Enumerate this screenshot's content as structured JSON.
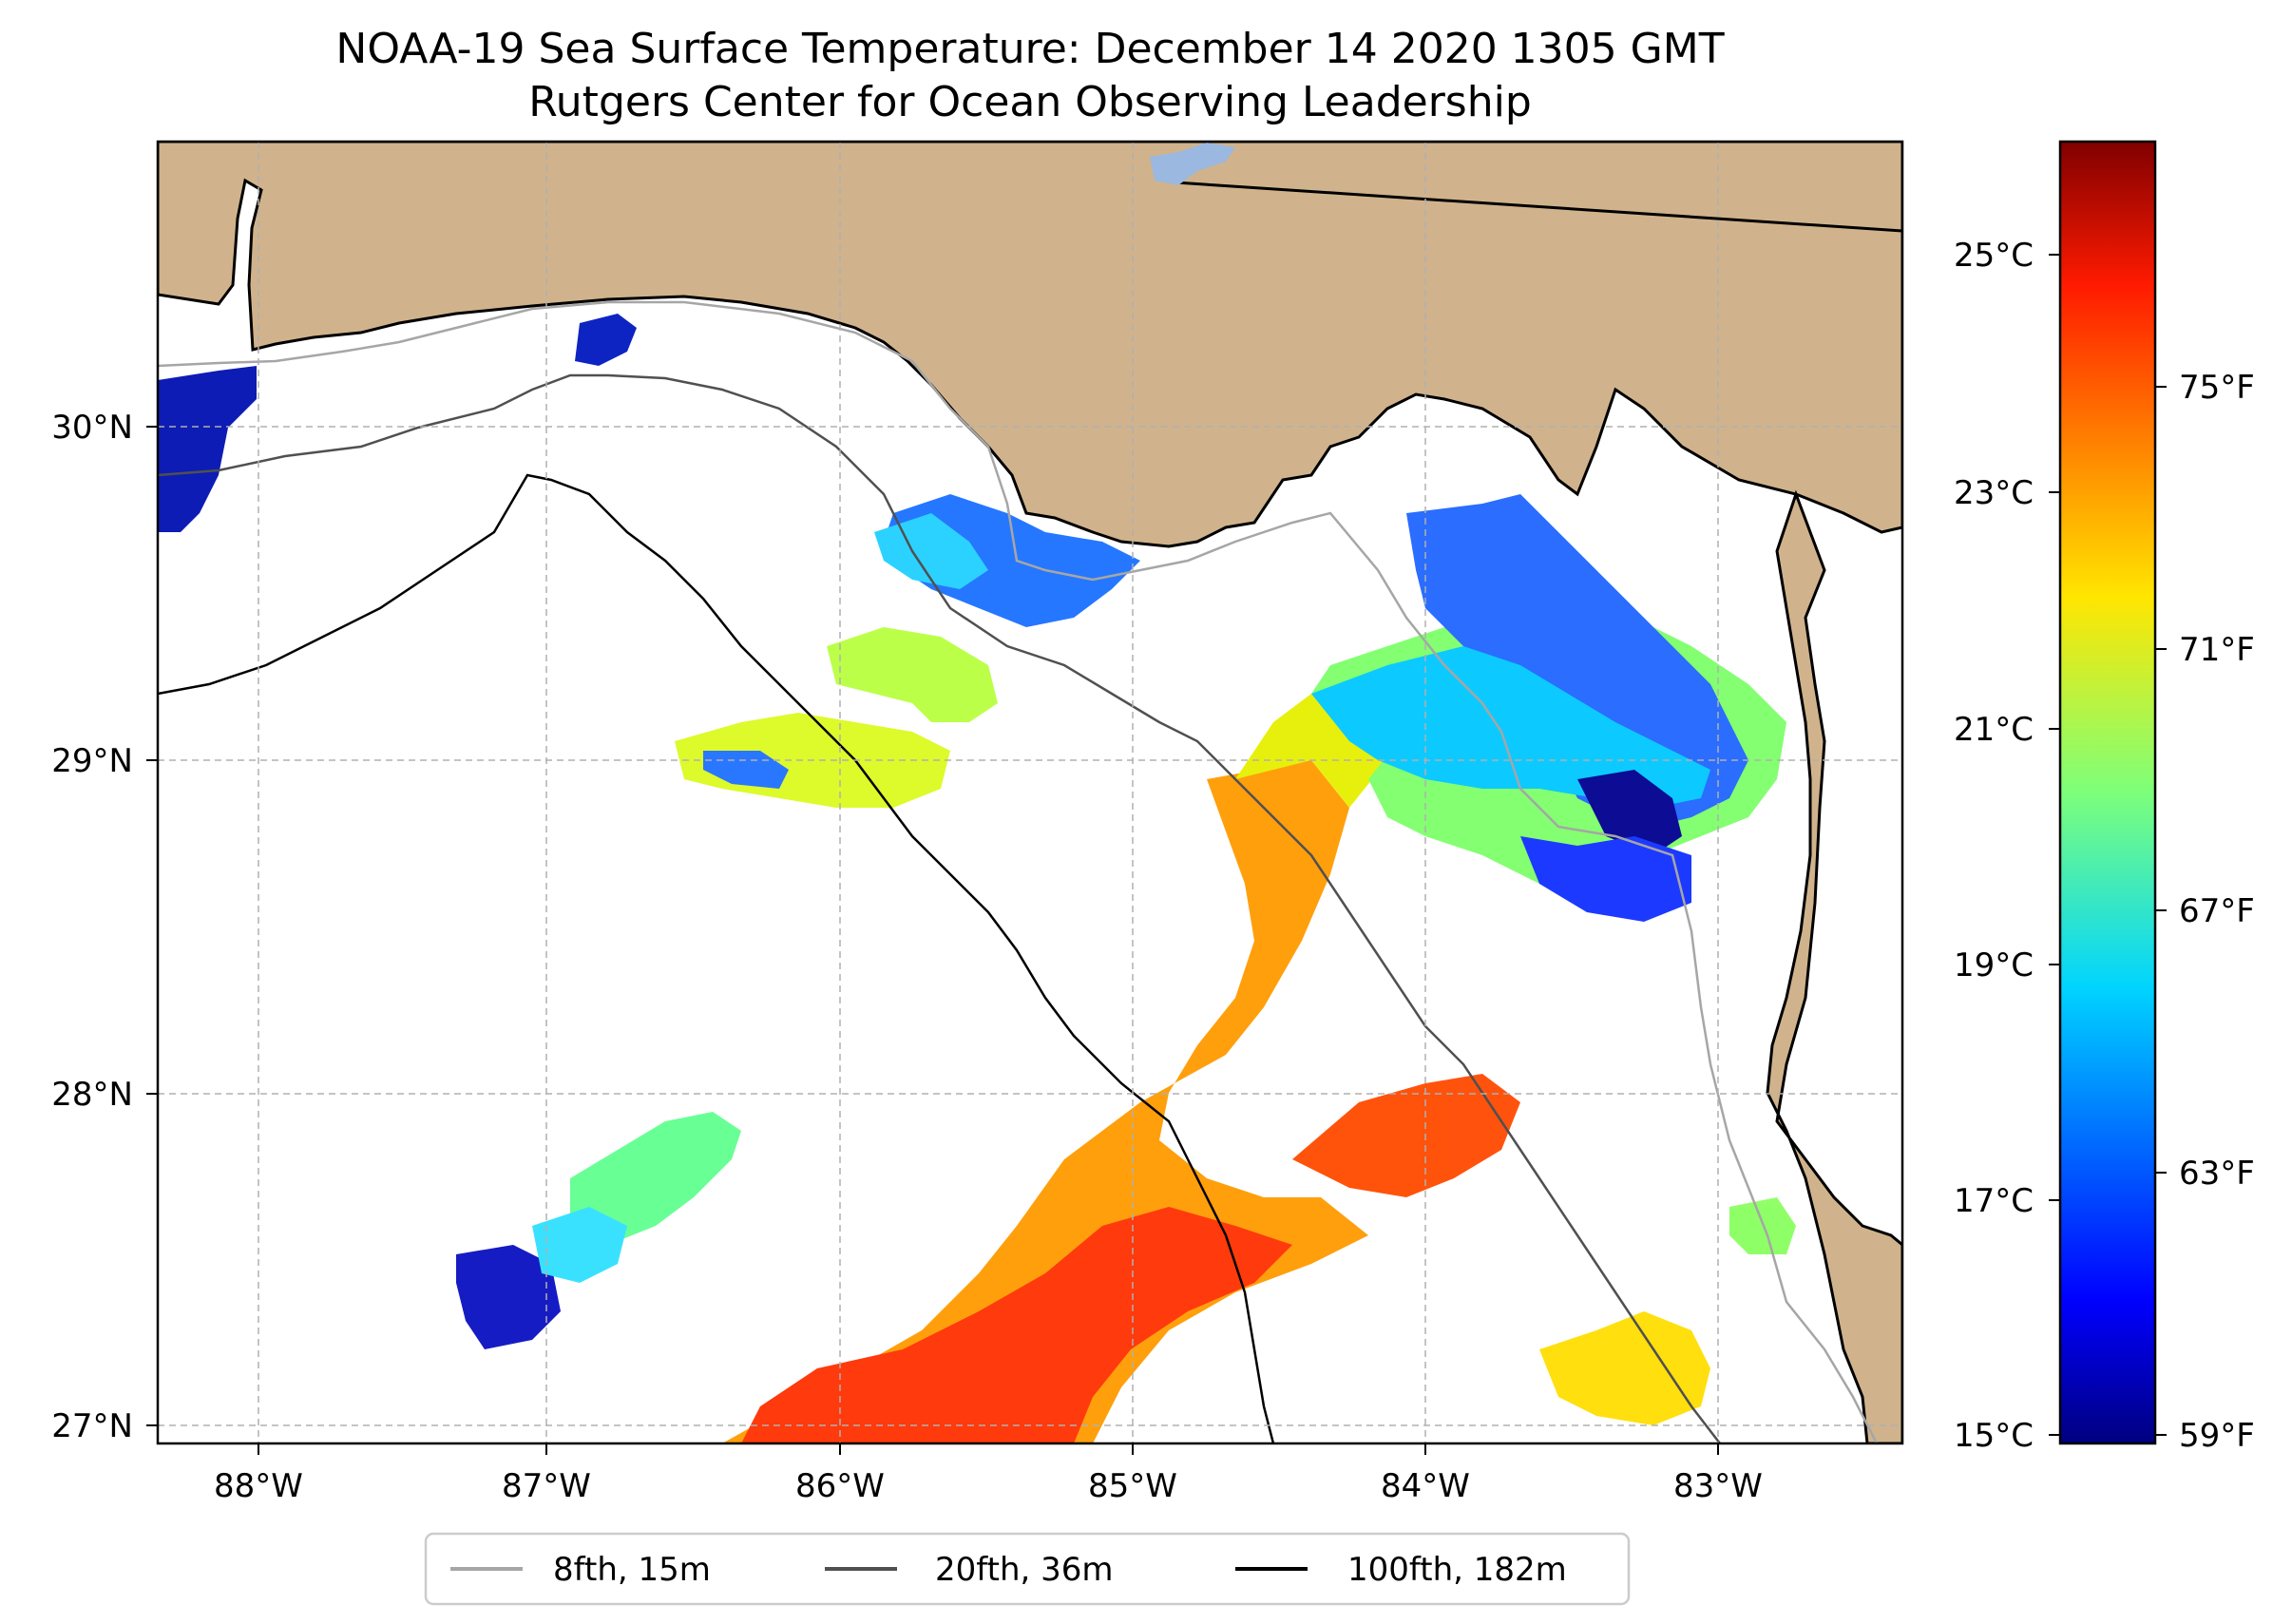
{
  "title": {
    "line1": "NOAA-19 Sea Surface Temperature: December 14 2020 1305 GMT",
    "line2": "Rutgers Center for Ocean Observing Leadership"
  },
  "map": {
    "lon_ticks": [
      "88°W",
      "87°W",
      "86°W",
      "85°W",
      "84°W",
      "83°W"
    ],
    "lat_ticks": [
      "30°N",
      "29°N",
      "28°N",
      "27°N"
    ],
    "land_color": "#d0b38c",
    "ocean_color": "#ffffff"
  },
  "colorbar": {
    "celsius_ticks": [
      "25°C",
      "23°C",
      "21°C",
      "19°C",
      "17°C",
      "15°C"
    ],
    "fahrenheit_ticks": [
      "75°F",
      "71°F",
      "67°F",
      "63°F",
      "59°F"
    ],
    "colormap": "jet",
    "min_c": 15,
    "max_c": 26.1
  },
  "legend": {
    "items": [
      {
        "label": "8fth, 15m",
        "color": "#a6a6a6"
      },
      {
        "label": "20fth, 36m",
        "color": "#505050"
      },
      {
        "label": "100fth, 182m",
        "color": "#000000"
      }
    ]
  }
}
